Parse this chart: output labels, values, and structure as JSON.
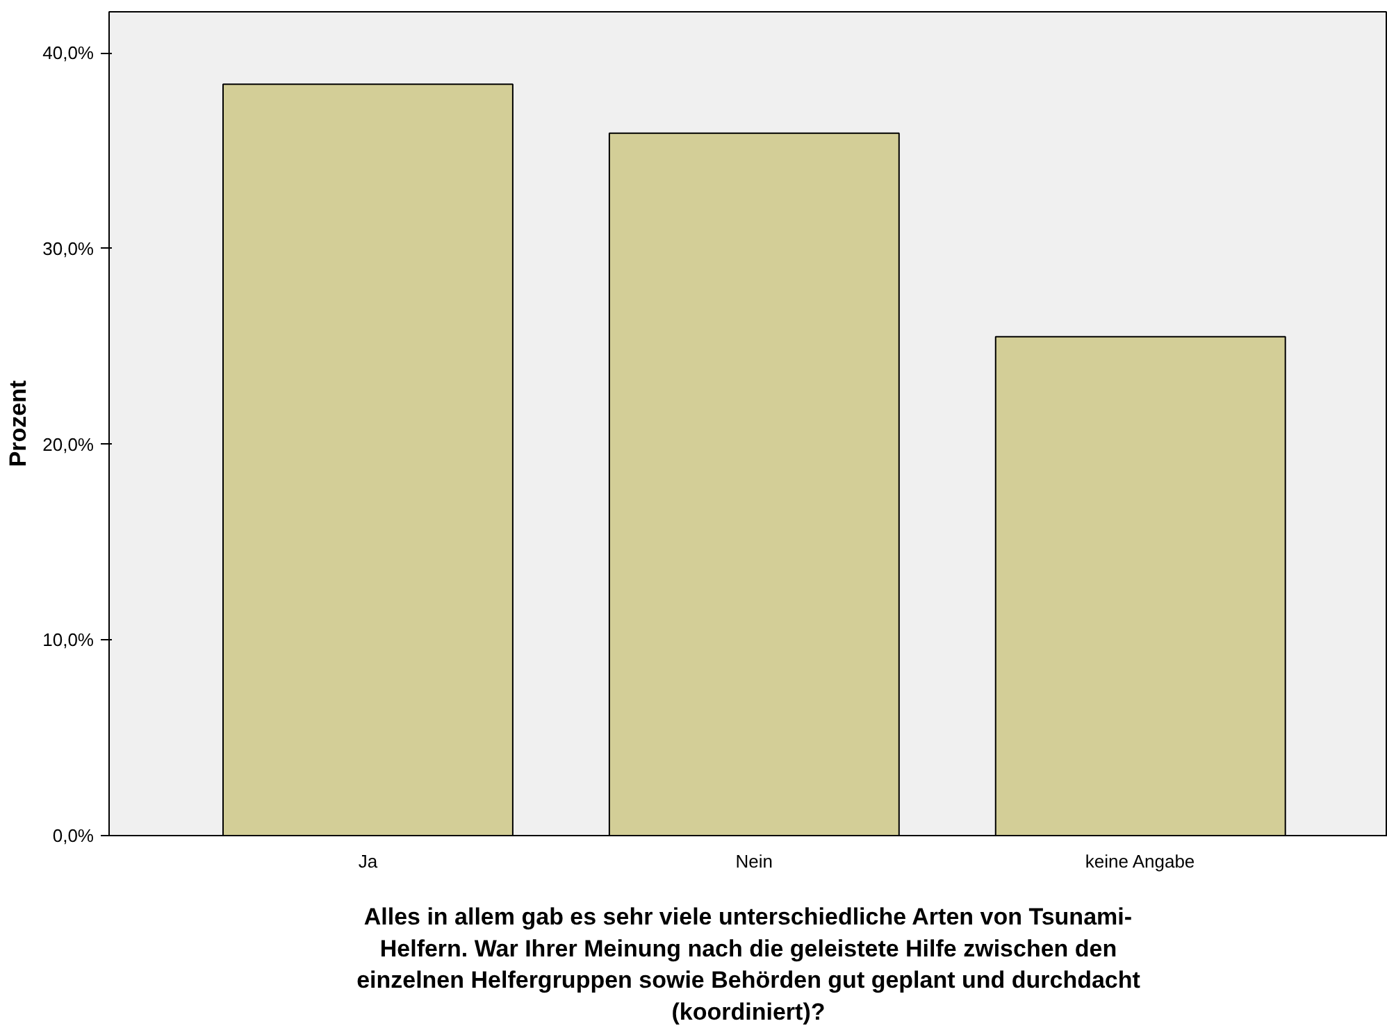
{
  "chart_data": {
    "type": "bar",
    "xlabel": "Alles in allem gab es sehr viele unterschiedliche Arten von Tsunami-Helfern. War Ihrer Meinung nach die geleistete Hilfe zwischen den einzelnen Helfergruppen sowie Behörden gut geplant und durchdacht (koordiniert)?",
    "ylabel": "Prozent",
    "categories": [
      "Ja",
      "Nein",
      "keine Angabe"
    ],
    "values": [
      38.4,
      35.9,
      25.5
    ],
    "color": "#d3ce97",
    "ylim": [
      0,
      42.1
    ],
    "yticks": [
      {
        "value": 0,
        "label": "0,0%"
      },
      {
        "value": 10,
        "label": "10,0%"
      },
      {
        "value": 20,
        "label": "20,0%"
      },
      {
        "value": 30,
        "label": "30,0%"
      },
      {
        "value": 40,
        "label": "40,0%"
      }
    ],
    "grid": false
  }
}
